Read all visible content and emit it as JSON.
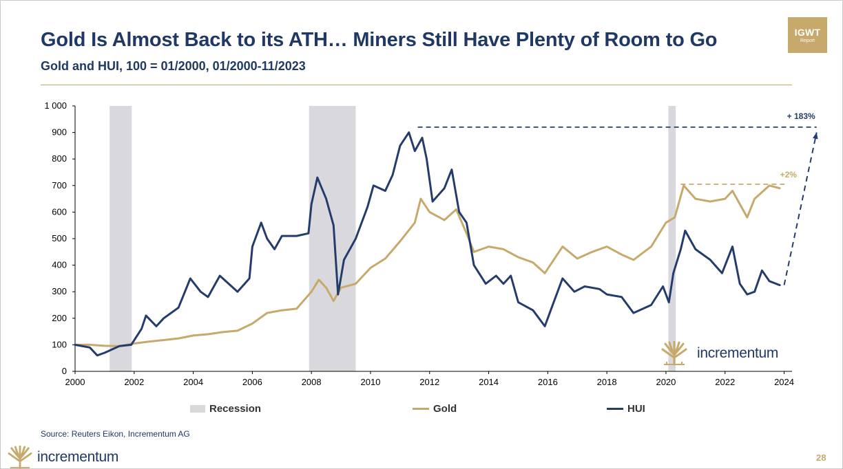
{
  "header": {
    "title": "Gold Is Almost Back to its ATH… Miners Still Have Plenty of Room to Go",
    "subtitle": "Gold and HUI, 100 = 01/2000, 01/2000-11/2023",
    "badge_main": "IGWT",
    "badge_sub": "Report"
  },
  "colors": {
    "gold": "#c6a96b",
    "hui": "#243c6b",
    "recession": "#d9d9dd",
    "title": "#1f3864"
  },
  "chart_data": {
    "type": "line",
    "title": "",
    "xlabel": "",
    "ylabel": "",
    "xlim": [
      2000,
      2025.2
    ],
    "ylim": [
      0,
      1000
    ],
    "xticks": [
      2000,
      2002,
      2004,
      2006,
      2008,
      2010,
      2012,
      2014,
      2016,
      2018,
      2020,
      2022,
      2024
    ],
    "yticks": [
      0,
      100,
      200,
      300,
      400,
      500,
      600,
      700,
      800,
      900,
      1000
    ],
    "ytick_labels": [
      "0",
      "100",
      "200",
      "300",
      "400",
      "500",
      "600",
      "700",
      "800",
      "900",
      "1 000"
    ],
    "grid": false,
    "legend_position": "bottom",
    "recessions": [
      [
        2001.17,
        2001.92
      ],
      [
        2007.92,
        2009.5
      ],
      [
        2020.08,
        2020.33
      ]
    ],
    "series": [
      {
        "name": "Gold",
        "color": "#c6a96b",
        "points": [
          [
            2000.0,
            100
          ],
          [
            2000.5,
            100
          ],
          [
            2001.0,
            96
          ],
          [
            2001.5,
            95
          ],
          [
            2002.0,
            105
          ],
          [
            2002.5,
            112
          ],
          [
            2003.0,
            118
          ],
          [
            2003.5,
            124
          ],
          [
            2004.0,
            135
          ],
          [
            2004.5,
            140
          ],
          [
            2005.0,
            148
          ],
          [
            2005.5,
            153
          ],
          [
            2006.0,
            180
          ],
          [
            2006.5,
            220
          ],
          [
            2007.0,
            230
          ],
          [
            2007.5,
            236
          ],
          [
            2008.0,
            300
          ],
          [
            2008.25,
            345
          ],
          [
            2008.5,
            315
          ],
          [
            2008.75,
            265
          ],
          [
            2009.0,
            315
          ],
          [
            2009.5,
            330
          ],
          [
            2010.0,
            390
          ],
          [
            2010.5,
            425
          ],
          [
            2011.0,
            490
          ],
          [
            2011.5,
            560
          ],
          [
            2011.7,
            650
          ],
          [
            2012.0,
            600
          ],
          [
            2012.5,
            570
          ],
          [
            2012.9,
            610
          ],
          [
            2013.25,
            520
          ],
          [
            2013.5,
            450
          ],
          [
            2014.0,
            470
          ],
          [
            2014.5,
            460
          ],
          [
            2015.0,
            430
          ],
          [
            2015.5,
            410
          ],
          [
            2015.9,
            370
          ],
          [
            2016.5,
            470
          ],
          [
            2017.0,
            425
          ],
          [
            2017.5,
            450
          ],
          [
            2018.0,
            470
          ],
          [
            2018.5,
            440
          ],
          [
            2018.9,
            420
          ],
          [
            2019.5,
            470
          ],
          [
            2020.0,
            560
          ],
          [
            2020.3,
            580
          ],
          [
            2020.6,
            700
          ],
          [
            2021.0,
            650
          ],
          [
            2021.5,
            640
          ],
          [
            2022.0,
            650
          ],
          [
            2022.25,
            680
          ],
          [
            2022.75,
            580
          ],
          [
            2023.0,
            650
          ],
          [
            2023.5,
            700
          ],
          [
            2023.85,
            690
          ]
        ]
      },
      {
        "name": "HUI",
        "color": "#243c6b",
        "points": [
          [
            2000.0,
            100
          ],
          [
            2000.5,
            90
          ],
          [
            2000.75,
            60
          ],
          [
            2001.0,
            70
          ],
          [
            2001.5,
            95
          ],
          [
            2001.9,
            100
          ],
          [
            2002.25,
            160
          ],
          [
            2002.4,
            210
          ],
          [
            2002.75,
            170
          ],
          [
            2003.0,
            200
          ],
          [
            2003.5,
            240
          ],
          [
            2003.9,
            350
          ],
          [
            2004.25,
            300
          ],
          [
            2004.5,
            280
          ],
          [
            2004.9,
            360
          ],
          [
            2005.5,
            300
          ],
          [
            2005.9,
            350
          ],
          [
            2006.0,
            470
          ],
          [
            2006.3,
            560
          ],
          [
            2006.5,
            500
          ],
          [
            2006.75,
            460
          ],
          [
            2007.0,
            510
          ],
          [
            2007.5,
            510
          ],
          [
            2007.9,
            520
          ],
          [
            2008.0,
            630
          ],
          [
            2008.2,
            730
          ],
          [
            2008.5,
            650
          ],
          [
            2008.75,
            550
          ],
          [
            2008.9,
            290
          ],
          [
            2009.1,
            420
          ],
          [
            2009.5,
            500
          ],
          [
            2009.9,
            620
          ],
          [
            2010.1,
            700
          ],
          [
            2010.5,
            680
          ],
          [
            2010.75,
            740
          ],
          [
            2011.0,
            850
          ],
          [
            2011.3,
            900
          ],
          [
            2011.5,
            830
          ],
          [
            2011.75,
            880
          ],
          [
            2011.9,
            800
          ],
          [
            2012.1,
            640
          ],
          [
            2012.5,
            690
          ],
          [
            2012.75,
            760
          ],
          [
            2013.0,
            600
          ],
          [
            2013.25,
            560
          ],
          [
            2013.5,
            400
          ],
          [
            2013.9,
            330
          ],
          [
            2014.25,
            360
          ],
          [
            2014.5,
            330
          ],
          [
            2014.75,
            360
          ],
          [
            2015.0,
            260
          ],
          [
            2015.5,
            230
          ],
          [
            2015.9,
            170
          ],
          [
            2016.1,
            230
          ],
          [
            2016.5,
            350
          ],
          [
            2016.9,
            300
          ],
          [
            2017.25,
            320
          ],
          [
            2017.75,
            310
          ],
          [
            2018.0,
            290
          ],
          [
            2018.5,
            280
          ],
          [
            2018.9,
            220
          ],
          [
            2019.5,
            250
          ],
          [
            2019.9,
            320
          ],
          [
            2020.1,
            260
          ],
          [
            2020.25,
            370
          ],
          [
            2020.5,
            460
          ],
          [
            2020.65,
            530
          ],
          [
            2021.0,
            460
          ],
          [
            2021.5,
            420
          ],
          [
            2021.9,
            370
          ],
          [
            2022.25,
            470
          ],
          [
            2022.5,
            330
          ],
          [
            2022.75,
            290
          ],
          [
            2023.0,
            300
          ],
          [
            2023.25,
            380
          ],
          [
            2023.5,
            340
          ],
          [
            2023.85,
            325
          ]
        ]
      }
    ],
    "annotations": [
      {
        "text": "+ 183%",
        "color": "#243c6b",
        "hline_y": 920,
        "hline_x": [
          2011.6,
          2025.1
        ],
        "arrow_from": [
          2024.0,
          325
        ],
        "arrow_to": [
          2025.1,
          900
        ]
      },
      {
        "text": "+2%",
        "color": "#c6a96b",
        "hline_y": 705,
        "hline_x": [
          2020.5,
          2024.1
        ]
      }
    ]
  },
  "legend": [
    {
      "label": "Recession",
      "type": "box",
      "color": "#d9d9dd"
    },
    {
      "label": "Gold",
      "type": "line",
      "color": "#c6a96b"
    },
    {
      "label": "HUI",
      "type": "line",
      "color": "#243c6b"
    }
  ],
  "source": "Source: Reuters Eikon, Incrementum AG",
  "brand": {
    "chart_logo_text": "incrementum",
    "footer_logo_text": "incrementum"
  },
  "page_number": "28"
}
